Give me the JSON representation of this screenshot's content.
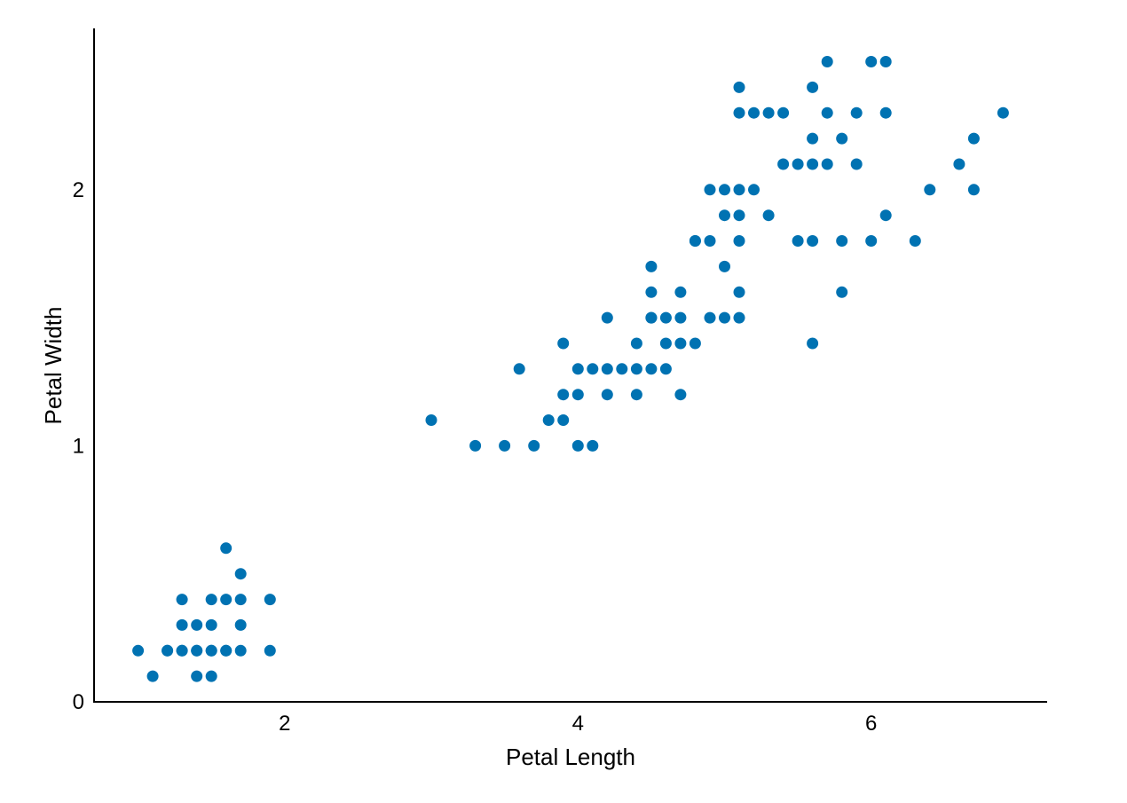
{
  "chart_data": {
    "type": "scatter",
    "title": "",
    "xlabel": "Petal Length",
    "ylabel": "Petal Width",
    "xlim": [
      0.7,
      7.2
    ],
    "ylim": [
      0,
      2.63
    ],
    "x_ticks": [
      2,
      4,
      6
    ],
    "y_ticks": [
      0,
      1,
      2
    ],
    "grid": false,
    "marker_color": "#0072b2",
    "series": [
      {
        "points": [
          [
            1.0,
            0.2
          ],
          [
            1.1,
            0.1
          ],
          [
            1.2,
            0.2
          ],
          [
            1.2,
            0.2
          ],
          [
            1.3,
            0.2
          ],
          [
            1.3,
            0.2
          ],
          [
            1.3,
            0.3
          ],
          [
            1.3,
            0.4
          ],
          [
            1.4,
            0.1
          ],
          [
            1.4,
            0.2
          ],
          [
            1.4,
            0.2
          ],
          [
            1.4,
            0.3
          ],
          [
            1.5,
            0.1
          ],
          [
            1.5,
            0.2
          ],
          [
            1.5,
            0.2
          ],
          [
            1.5,
            0.3
          ],
          [
            1.5,
            0.4
          ],
          [
            1.6,
            0.2
          ],
          [
            1.6,
            0.2
          ],
          [
            1.6,
            0.4
          ],
          [
            1.6,
            0.6
          ],
          [
            1.7,
            0.2
          ],
          [
            1.7,
            0.3
          ],
          [
            1.7,
            0.4
          ],
          [
            1.7,
            0.5
          ],
          [
            1.9,
            0.2
          ],
          [
            1.9,
            0.4
          ],
          [
            3.0,
            1.1
          ],
          [
            3.3,
            1.0
          ],
          [
            3.5,
            1.0
          ],
          [
            3.6,
            1.3
          ],
          [
            3.7,
            1.0
          ],
          [
            3.8,
            1.1
          ],
          [
            3.9,
            1.1
          ],
          [
            3.9,
            1.2
          ],
          [
            3.9,
            1.4
          ],
          [
            4.0,
            1.0
          ],
          [
            4.0,
            1.2
          ],
          [
            4.0,
            1.3
          ],
          [
            4.1,
            1.0
          ],
          [
            4.1,
            1.3
          ],
          [
            4.2,
            1.2
          ],
          [
            4.2,
            1.3
          ],
          [
            4.2,
            1.5
          ],
          [
            4.3,
            1.3
          ],
          [
            4.4,
            1.2
          ],
          [
            4.4,
            1.3
          ],
          [
            4.4,
            1.4
          ],
          [
            4.5,
            1.3
          ],
          [
            4.5,
            1.5
          ],
          [
            4.5,
            1.5
          ],
          [
            4.5,
            1.6
          ],
          [
            4.5,
            1.7
          ],
          [
            4.6,
            1.3
          ],
          [
            4.6,
            1.4
          ],
          [
            4.6,
            1.5
          ],
          [
            4.7,
            1.2
          ],
          [
            4.7,
            1.4
          ],
          [
            4.7,
            1.5
          ],
          [
            4.7,
            1.6
          ],
          [
            4.8,
            1.4
          ],
          [
            4.8,
            1.8
          ],
          [
            4.8,
            1.8
          ],
          [
            4.9,
            1.5
          ],
          [
            4.9,
            1.8
          ],
          [
            4.9,
            2.0
          ],
          [
            5.0,
            1.5
          ],
          [
            5.0,
            1.7
          ],
          [
            5.0,
            1.9
          ],
          [
            5.0,
            2.0
          ],
          [
            5.1,
            1.5
          ],
          [
            5.1,
            1.6
          ],
          [
            5.1,
            1.8
          ],
          [
            5.1,
            1.9
          ],
          [
            5.1,
            2.0
          ],
          [
            5.1,
            2.3
          ],
          [
            5.1,
            2.4
          ],
          [
            5.2,
            2.0
          ],
          [
            5.2,
            2.3
          ],
          [
            5.3,
            1.9
          ],
          [
            5.3,
            2.3
          ],
          [
            5.4,
            2.1
          ],
          [
            5.4,
            2.3
          ],
          [
            5.5,
            1.8
          ],
          [
            5.5,
            2.1
          ],
          [
            5.6,
            1.4
          ],
          [
            5.6,
            1.8
          ],
          [
            5.6,
            2.1
          ],
          [
            5.6,
            2.2
          ],
          [
            5.6,
            2.4
          ],
          [
            5.7,
            2.1
          ],
          [
            5.7,
            2.3
          ],
          [
            5.7,
            2.5
          ],
          [
            5.8,
            1.6
          ],
          [
            5.8,
            1.8
          ],
          [
            5.8,
            2.2
          ],
          [
            5.9,
            2.1
          ],
          [
            5.9,
            2.3
          ],
          [
            6.0,
            1.8
          ],
          [
            6.0,
            2.5
          ],
          [
            6.1,
            1.9
          ],
          [
            6.1,
            2.3
          ],
          [
            6.1,
            2.5
          ],
          [
            6.3,
            1.8
          ],
          [
            6.4,
            2.0
          ],
          [
            6.6,
            2.1
          ],
          [
            6.7,
            2.0
          ],
          [
            6.7,
            2.2
          ],
          [
            6.9,
            2.3
          ]
        ]
      }
    ]
  }
}
